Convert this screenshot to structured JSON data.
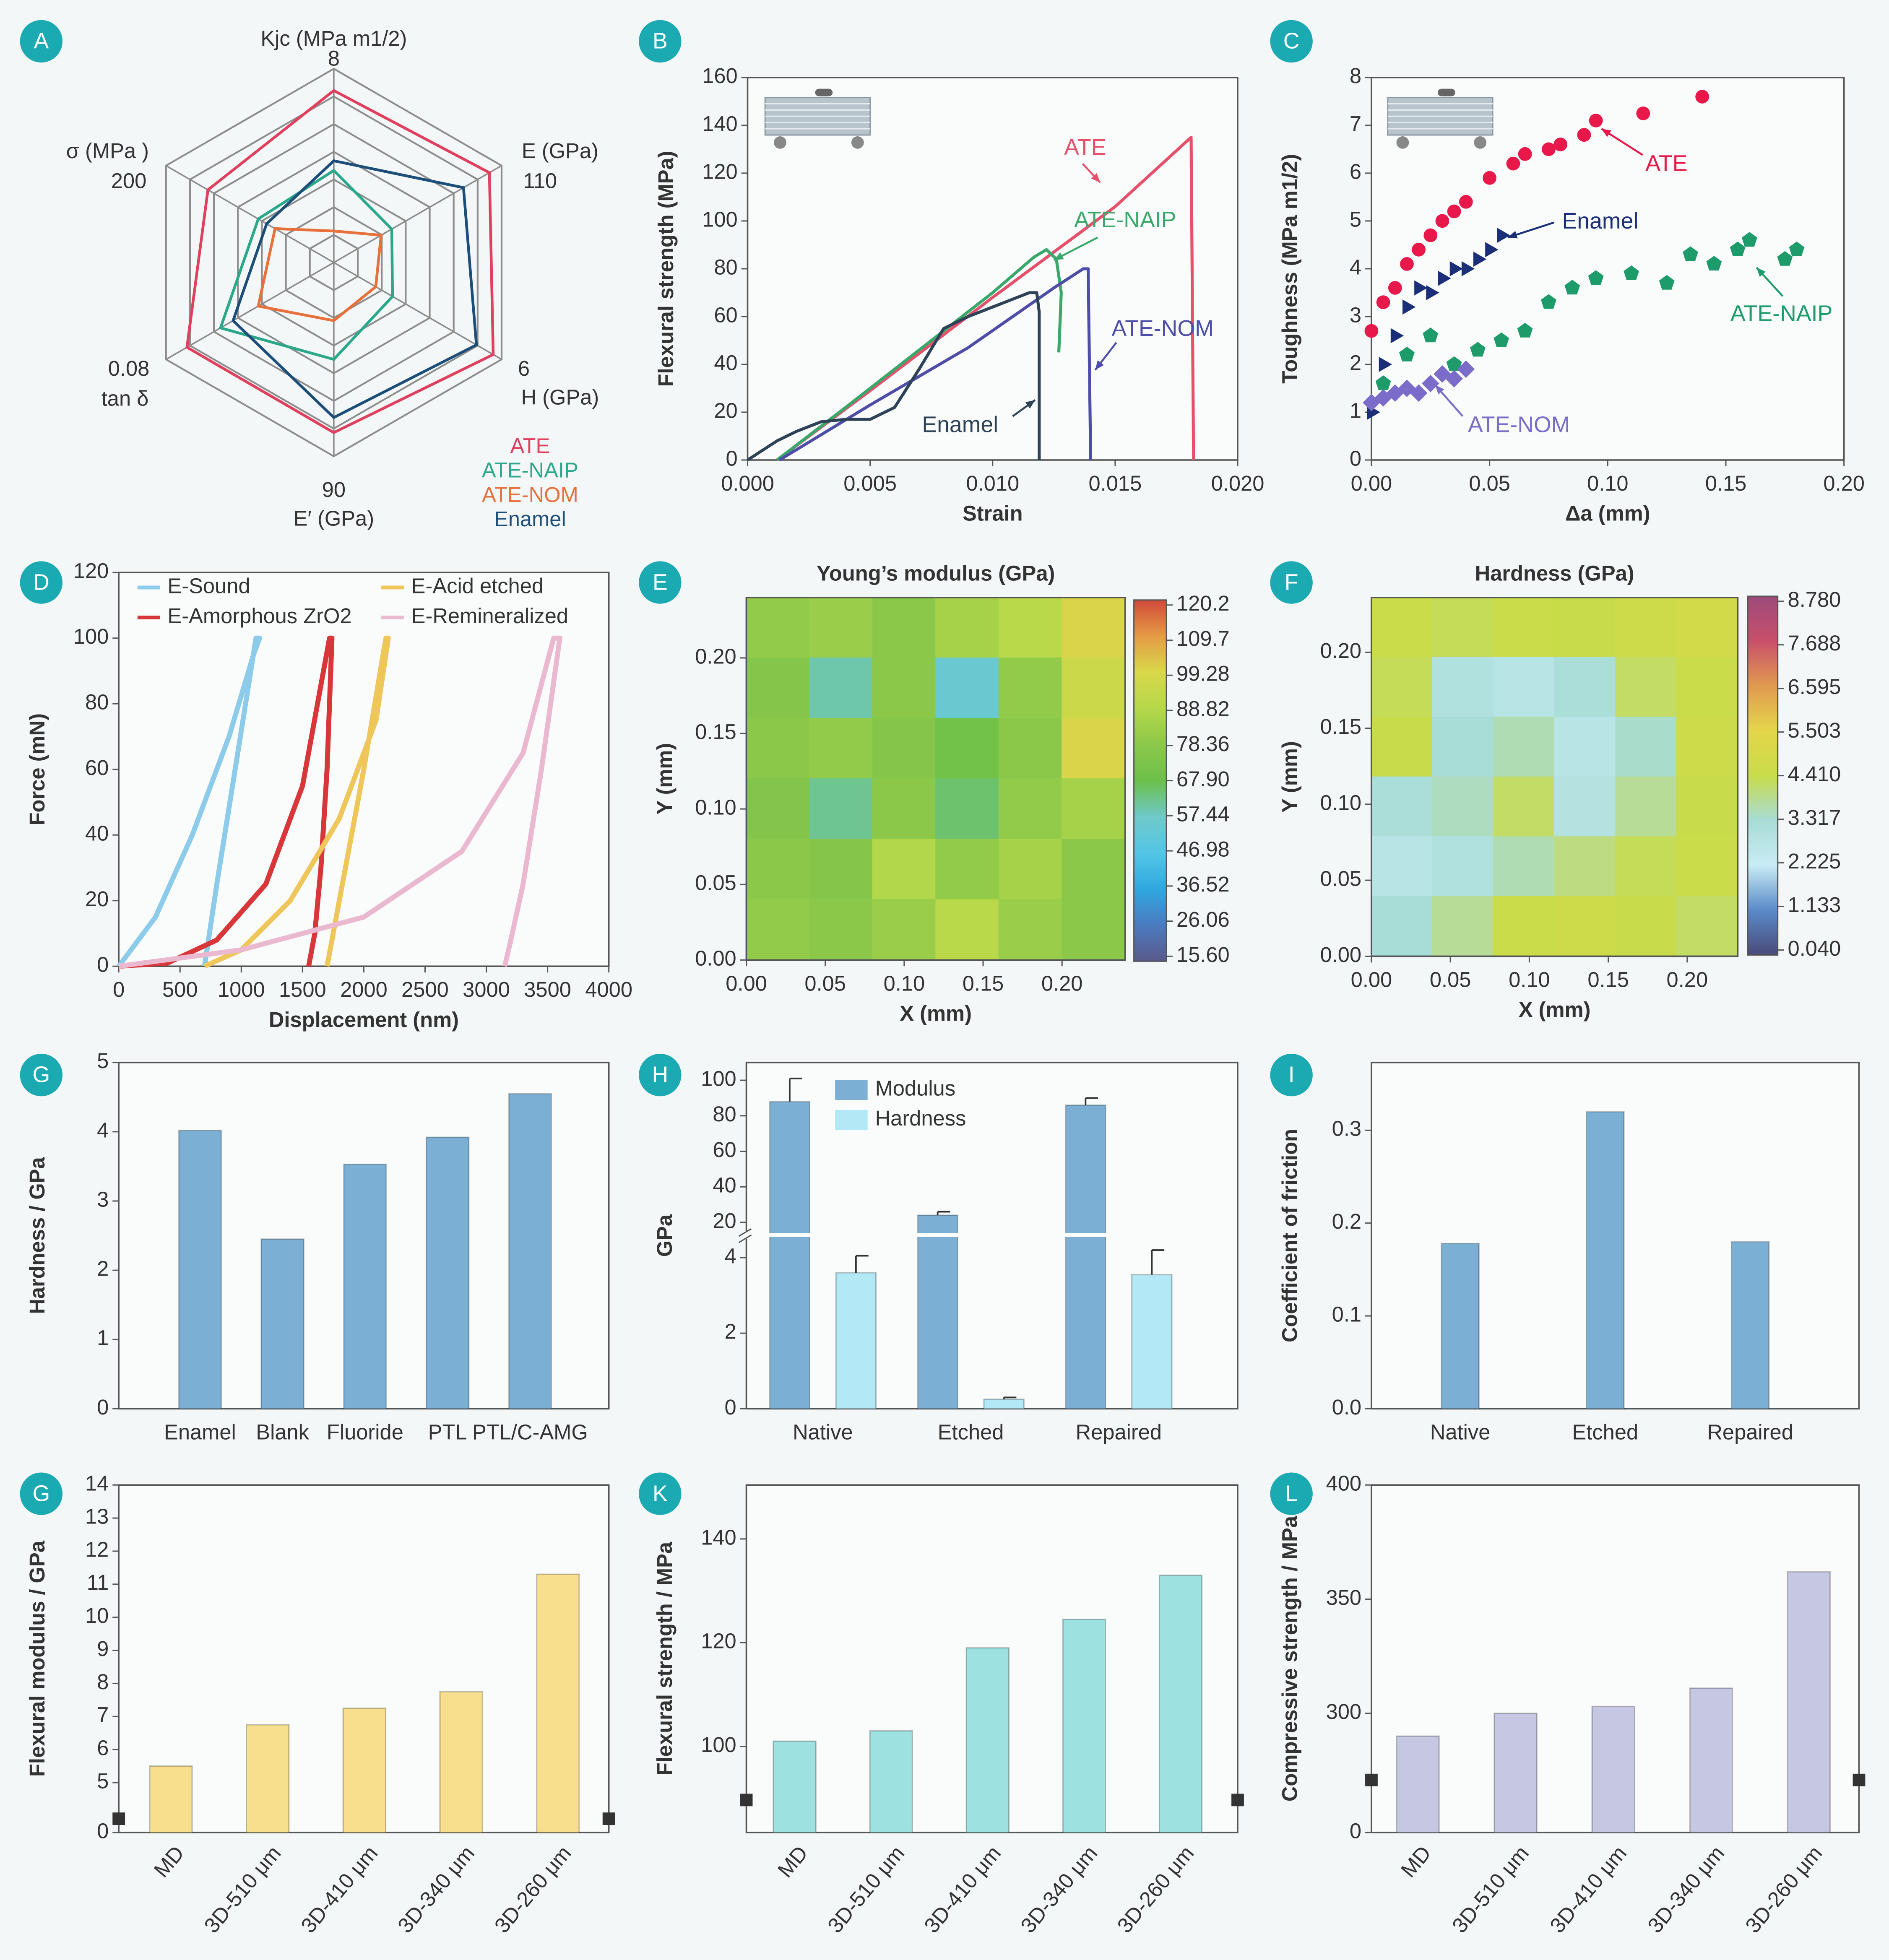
{
  "chart_data": [
    {
      "type": "radar",
      "panel_label": "A",
      "axes": [
        {
          "label": "Kjc (MPa m1/2)",
          "max": 8
        },
        {
          "label": "E (GPa)",
          "max": 110
        },
        {
          "label": "H (GPa)",
          "max": 6
        },
        {
          "label": "E′ (GPa)",
          "max": 90
        },
        {
          "label": "tan δ",
          "max": 0.08
        },
        {
          "label": "σ (MPa )",
          "max": 200
        }
      ],
      "series": [
        {
          "name": "ATE",
          "color": "#e0405e",
          "values": [
            7.1,
            102,
            5.7,
            79,
            0.07,
            150
          ]
        },
        {
          "name": "ATE-NAIP",
          "color": "#2aa889",
          "values": [
            3.8,
            38,
            2.1,
            45,
            0.054,
            90
          ]
        },
        {
          "name": "ATE-NOM",
          "color": "#e8703a",
          "values": [
            1.3,
            31,
            1.5,
            27,
            0.036,
            70
          ]
        },
        {
          "name": "Enamel",
          "color": "#1d4e7a",
          "values": [
            4.2,
            85,
            5.1,
            72,
            0.048,
            80
          ]
        }
      ]
    },
    {
      "type": "line",
      "panel_label": "B",
      "xlabel": "Strain",
      "ylabel": "Flexural strength (MPa)",
      "xlim": [
        0,
        0.02
      ],
      "xticks": [
        {
          "value": 0,
          "label": "0.000"
        },
        0.005,
        {
          "value": 0.01,
          "label": "0.010"
        },
        0.015,
        {
          "value": 0.02,
          "label": "0.020"
        }
      ],
      "ylim": [
        0,
        160
      ],
      "yticks": [
        0,
        20,
        40,
        60,
        80,
        100,
        120,
        140,
        160
      ],
      "series": [
        {
          "name": "ATE",
          "color": "#e6506a",
          "x": [
            0.0012,
            0.005,
            0.01,
            0.015,
            0.0181,
            0.0182
          ],
          "values": [
            0,
            29,
            68,
            106,
            135,
            0
          ]
        },
        {
          "name": "ATE-NAIP",
          "color": "#3aa86a",
          "x": [
            0.0012,
            0.004,
            0.007,
            0.01,
            0.0117,
            0.0122,
            0.0126,
            0.0128,
            0.0127
          ],
          "values": [
            0,
            22,
            46,
            70,
            85,
            88,
            84,
            70,
            45
          ]
        },
        {
          "name": "ATE-NOM",
          "color": "#4e4ea8",
          "x": [
            0.0013,
            0.005,
            0.009,
            0.0125,
            0.0137,
            0.0139,
            0.014
          ],
          "values": [
            0,
            23,
            47,
            72,
            80,
            80,
            0
          ]
        },
        {
          "name": "Enamel",
          "color": "#2f4358",
          "x": [
            0,
            0.0012,
            0.002,
            0.003,
            0.004,
            0.005,
            0.006,
            0.007,
            0.008,
            0.009,
            0.01,
            0.011,
            0.0115,
            0.0118,
            0.0119,
            0.0119
          ],
          "values": [
            0,
            8,
            12,
            16,
            17,
            17,
            22,
            38,
            55,
            60,
            64,
            68,
            70,
            70,
            62,
            0
          ]
        }
      ]
    },
    {
      "type": "scatter",
      "panel_label": "C",
      "xlabel": "Δa (mm)",
      "ylabel": "Toughness (MPa m1/2)",
      "xlim": [
        0,
        0.2
      ],
      "xticks": [
        {
          "value": 0,
          "label": "0.00"
        },
        0.05,
        {
          "value": 0.1,
          "label": "0.10"
        },
        0.15,
        {
          "value": 0.2,
          "label": "0.20"
        }
      ],
      "ylim": [
        0,
        8
      ],
      "yticks": [
        0,
        1,
        2,
        3,
        4,
        5,
        6,
        7,
        8
      ],
      "series": [
        {
          "name": "ATE",
          "color": "#e8194a",
          "marker": "circle",
          "x": [
            0,
            0.005,
            0.01,
            0.015,
            0.02,
            0.025,
            0.03,
            0.035,
            0.04,
            0.05,
            0.06,
            0.065,
            0.075,
            0.08,
            0.09,
            0.095,
            0.115,
            0.14
          ],
          "values": [
            2.7,
            3.3,
            3.6,
            4.1,
            4.4,
            4.7,
            5.0,
            5.2,
            5.4,
            5.9,
            6.2,
            6.4,
            6.5,
            6.6,
            6.8,
            7.1,
            7.25,
            7.6
          ]
        },
        {
          "name": "Enamel",
          "color": "#1b2f78",
          "marker": "triangle",
          "x": [
            0,
            0.005,
            0.01,
            0.015,
            0.02,
            0.025,
            0.03,
            0.035,
            0.04,
            0.045,
            0.05,
            0.055
          ],
          "values": [
            1.0,
            2.0,
            2.6,
            3.2,
            3.6,
            3.5,
            3.8,
            4.0,
            4.0,
            4.2,
            4.4,
            4.7
          ]
        },
        {
          "name": "ATE-NAIP",
          "color": "#1e9b6a",
          "marker": "pentagon",
          "x": [
            0.005,
            0.015,
            0.025,
            0.035,
            0.045,
            0.055,
            0.065,
            0.075,
            0.085,
            0.095,
            0.11,
            0.125,
            0.135,
            0.145,
            0.155,
            0.16,
            0.175,
            0.18
          ],
          "values": [
            1.6,
            2.2,
            2.6,
            2.0,
            2.3,
            2.5,
            2.7,
            3.3,
            3.6,
            3.8,
            3.9,
            3.7,
            4.3,
            4.1,
            4.4,
            4.6,
            4.2,
            4.4
          ]
        },
        {
          "name": "ATE-NOM",
          "color": "#7a6cc8",
          "marker": "diamond",
          "x": [
            0,
            0.005,
            0.01,
            0.015,
            0.02,
            0.025,
            0.03,
            0.035,
            0.04
          ],
          "values": [
            1.2,
            1.3,
            1.4,
            1.5,
            1.4,
            1.6,
            1.8,
            1.7,
            1.9
          ]
        }
      ]
    },
    {
      "type": "line",
      "panel_label": "D",
      "xlabel": "Displacement (nm)",
      "ylabel": "Force (mN)",
      "xlim": [
        0,
        4000
      ],
      "xticks": [
        0,
        500,
        1000,
        1500,
        2000,
        2500,
        3000,
        3500,
        4000
      ],
      "ylim": [
        0,
        120
      ],
      "yticks": [
        0,
        20,
        40,
        60,
        80,
        100,
        120
      ],
      "series": [
        {
          "name": "E-Sound",
          "color": "#8ccbea",
          "x": [
            0,
            300,
            600,
            900,
            1100,
            1150,
            1120,
            950,
            800,
            700
          ],
          "values": [
            0,
            15,
            40,
            70,
            95,
            100,
            100,
            60,
            25,
            0
          ]
        },
        {
          "name": "E-Amorphous ZrO2",
          "color": "#d9363a",
          "x": [
            0,
            400,
            800,
            1200,
            1500,
            1720,
            1740,
            1700,
            1650,
            1600,
            1550
          ],
          "values": [
            0,
            1,
            8,
            25,
            55,
            100,
            100,
            60,
            30,
            10,
            0
          ]
        },
        {
          "name": "E-Acid etched",
          "color": "#efc65a",
          "x": [
            700,
            1000,
            1400,
            1800,
            2100,
            2200,
            2180,
            2000,
            1850,
            1750,
            1700
          ],
          "values": [
            0,
            5,
            20,
            45,
            75,
            100,
            100,
            60,
            30,
            10,
            0
          ]
        },
        {
          "name": "E-Remineralized",
          "color": "#eab8cf",
          "x": [
            0,
            1000,
            2000,
            2800,
            3300,
            3550,
            3600,
            3450,
            3300,
            3200,
            3150
          ],
          "values": [
            0,
            5,
            15,
            35,
            65,
            100,
            100,
            60,
            25,
            8,
            0
          ]
        }
      ]
    },
    {
      "type": "contour",
      "panel_label": "E",
      "title": "Young’s modulus (GPa)",
      "xlabel": "X (mm)",
      "ylabel": "Y (mm)",
      "xlim": [
        0,
        0.24
      ],
      "xticks": [
        {
          "value": 0,
          "label": "0.00"
        },
        0.05,
        {
          "value": 0.1,
          "label": "0.10"
        },
        0.15,
        {
          "value": 0.2,
          "label": "0.20"
        }
      ],
      "ylim": [
        0,
        0.24
      ],
      "yticks": [
        {
          "value": 0,
          "label": "0.00"
        },
        0.05,
        {
          "value": 0.1,
          "label": "0.10"
        },
        0.15,
        {
          "value": 0.2,
          "label": "0.20"
        }
      ],
      "z": [
        [
          80,
          82,
          78,
          85,
          90,
          100
        ],
        [
          76,
          60,
          78,
          55,
          80,
          95
        ],
        [
          78,
          80,
          76,
          70,
          78,
          100
        ],
        [
          75,
          62,
          78,
          65,
          80,
          85
        ],
        [
          78,
          76,
          88,
          80,
          85,
          78
        ],
        [
          80,
          78,
          82,
          90,
          82,
          78
        ]
      ],
      "colorbar_ticks": [
        120.2,
        109.7,
        99.28,
        88.82,
        78.36,
        {
          "value": 67.9,
          "label": "67.90"
        },
        57.44,
        46.98,
        36.52,
        26.06,
        {
          "value": 15.6,
          "label": "15.60"
        }
      ],
      "colormap": [
        "#d04a3a",
        "#e59b45",
        "#d8d84a",
        "#b5d84a",
        "#8cc84a",
        "#6cc04a",
        "#6fc9c9",
        "#54c6e6",
        "#2fa8e0",
        "#4a7bc0",
        "#5a5a8a"
      ]
    },
    {
      "type": "contour",
      "panel_label": "F",
      "title": "Hardness (GPa)",
      "xlabel": "X (mm)",
      "ylabel": "Y (mm)",
      "xlim": [
        0,
        0.232
      ],
      "xticks": [
        {
          "value": 0,
          "label": "0.00"
        },
        0.05,
        {
          "value": 0.1,
          "label": "0.10"
        },
        0.15,
        {
          "value": 0.2,
          "label": "0.20"
        }
      ],
      "ylim": [
        0,
        0.236
      ],
      "yticks": [
        {
          "value": 0,
          "label": "0.00"
        },
        0.05,
        {
          "value": 0.1,
          "label": "0.10"
        },
        0.15,
        {
          "value": 0.2,
          "label": "0.20"
        }
      ],
      "z": [
        [
          4.5,
          4.3,
          4.5,
          4.4,
          4.6,
          4.8
        ],
        [
          4.3,
          3.0,
          2.8,
          3.2,
          4.2,
          4.5
        ],
        [
          4.4,
          3.3,
          3.6,
          2.8,
          3.4,
          4.6
        ],
        [
          3.2,
          3.5,
          4.2,
          2.9,
          3.8,
          4.4
        ],
        [
          2.8,
          3.0,
          3.6,
          4.0,
          4.3,
          4.5
        ],
        [
          3.3,
          3.8,
          4.5,
          4.6,
          4.4,
          4.2
        ]
      ],
      "colorbar_ticks": [
        {
          "value": 8.78,
          "label": "8.780"
        },
        7.688,
        6.595,
        5.503,
        {
          "value": 4.41,
          "label": "4.410"
        },
        3.317,
        2.225,
        1.133,
        {
          "value": 0.04,
          "label": "0.040"
        }
      ],
      "colormap": [
        "#9b4a7a",
        "#c9506a",
        "#e09a50",
        "#e4d64a",
        "#c8dc4a",
        "#a8dcd6",
        "#c8ecf4",
        "#5a8ac8",
        "#4a4a7a"
      ]
    },
    {
      "type": "bar",
      "panel_label": "G",
      "ylabel": "Hardness / GPa",
      "categories": [
        "Enamel",
        "Blank",
        "Fluoride",
        "PTL",
        "PTL/C-AMG"
      ],
      "values": [
        4.02,
        2.45,
        3.53,
        3.92,
        4.55
      ],
      "color": "#7bafd4",
      "ylim": [
        0,
        5
      ],
      "yticks": [
        0,
        1,
        2,
        3,
        4,
        5
      ]
    },
    {
      "type": "bar",
      "panel_label": "H",
      "ylabel": "GPa",
      "categories": [
        "Native",
        "Etched",
        "Repaired"
      ],
      "ylim": [
        0,
        4.5
      ],
      "yticks": [
        0,
        2,
        4
      ],
      "ylim_upper": [
        15,
        110
      ],
      "yticks_upper": [
        20,
        40,
        60,
        80,
        100
      ],
      "series": [
        {
          "name": "Modulus",
          "color": "#7bafd4",
          "axis": "upper",
          "values": [
            88,
            24,
            86
          ],
          "errors": [
            13,
            2,
            4
          ]
        },
        {
          "name": "Hardness",
          "color": "#b3e8f7",
          "values": [
            3.6,
            0.25,
            3.55
          ],
          "errors": [
            0.45,
            0.05,
            0.65
          ]
        }
      ]
    },
    {
      "type": "bar",
      "panel_label": "I",
      "ylabel": "Coefficient of friction",
      "categories": [
        "Native",
        "Etched",
        "Repaired"
      ],
      "values": [
        0.178,
        0.32,
        0.18
      ],
      "color": "#7bafd4",
      "ylim": [
        0,
        0.373
      ],
      "yticks": [
        {
          "value": 0,
          "label": "0.0"
        },
        0.1,
        0.2,
        0.3
      ]
    },
    {
      "type": "bar",
      "panel_label": "G",
      "ylabel": "Flexural modulus / GPa",
      "categories": [
        "MD",
        "3D-510 μm",
        "3D-410 μm",
        "3D-340 μm",
        "3D-260 μm"
      ],
      "values": [
        5.5,
        6.75,
        7.25,
        7.75,
        11.3
      ],
      "color": "#f7df8e",
      "ylim": [
        0,
        14
      ],
      "y_break": [
        0,
        4.4
      ],
      "yticks": [
        0,
        5,
        6,
        7,
        8,
        9,
        10,
        11,
        12,
        13,
        14
      ]
    },
    {
      "type": "bar",
      "panel_label": "K",
      "ylabel": "Flexural strength / MPa",
      "categories": [
        "MD",
        "3D-510 μm",
        "3D-410 μm",
        "3D-340 μm",
        "3D-260 μm"
      ],
      "values": [
        101,
        103,
        119,
        124.5,
        133
      ],
      "color": "#9de1e1",
      "ylim": [
        83.4,
        150.4
      ],
      "yticks": [
        100,
        120,
        140
      ]
    },
    {
      "type": "bar",
      "panel_label": "L",
      "ylabel": "Compressive strength / MPa",
      "categories": [
        "MD",
        "3D-510 μm",
        "3D-410 μm",
        "3D-340 μm",
        "3D-260 μm"
      ],
      "values": [
        290,
        300,
        303,
        311,
        362
      ],
      "color": "#c6c7e3",
      "ylim": [
        0,
        400
      ],
      "y_break": [
        0,
        250
      ],
      "yticks": [
        0,
        300,
        350,
        400
      ]
    }
  ]
}
